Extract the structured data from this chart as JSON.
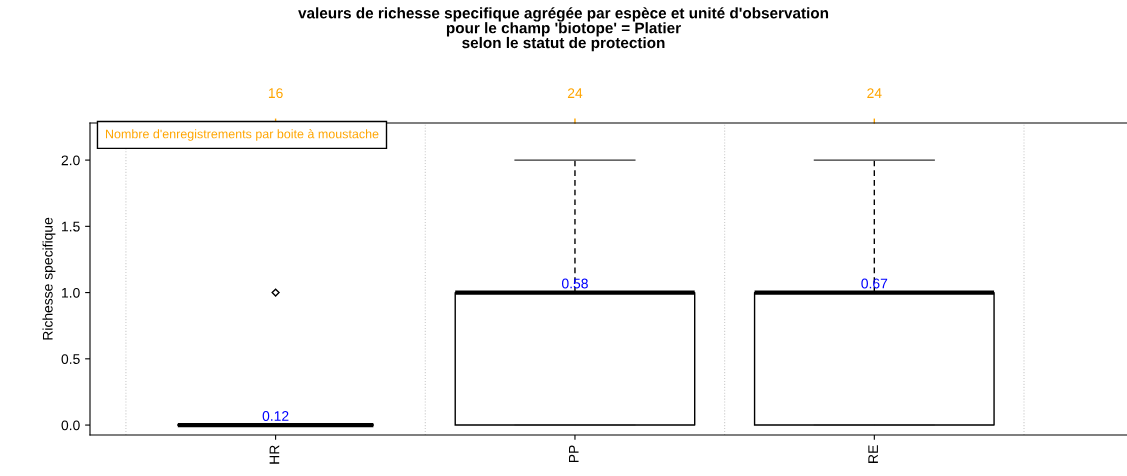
{
  "chart_data": {
    "type": "box",
    "title": "valeurs de richesse specifique agrégée par espèce et unité d'observation\npour le champ 'biotope' = Platier\nselon le statut de protection",
    "ylabel": "Richesse specifique",
    "categories": [
      "HR",
      "PP",
      "RE"
    ],
    "boxes": [
      {
        "low": 0,
        "q1": 0,
        "median": 0,
        "q3": 0,
        "high": 0,
        "outliers": [
          1
        ]
      },
      {
        "low": 0,
        "q1": 0,
        "median": 1,
        "q3": 1,
        "high": 2
      },
      {
        "low": 0,
        "q1": 0,
        "median": 1,
        "q3": 1,
        "high": 2
      }
    ],
    "ylim": [
      -0.075,
      2.28
    ],
    "yticks": [
      {
        "value": 0,
        "label": "0.0"
      },
      {
        "value": 0.5,
        "label": "0.5"
      },
      {
        "value": 1,
        "label": "1.0"
      },
      {
        "value": 1.5,
        "label": "1.5"
      },
      {
        "value": 2,
        "label": "2.0"
      }
    ],
    "grid": "x",
    "annotations": [
      {
        "text": "0.12",
        "x": "HR",
        "y": 0
      },
      {
        "text": "0.58",
        "x": "PP",
        "y": 1
      },
      {
        "text": "0.67",
        "x": "RE",
        "y": 1
      },
      "16",
      "24",
      "24",
      "Nombre d'enregistrements par boite à moustache"
    ]
  }
}
